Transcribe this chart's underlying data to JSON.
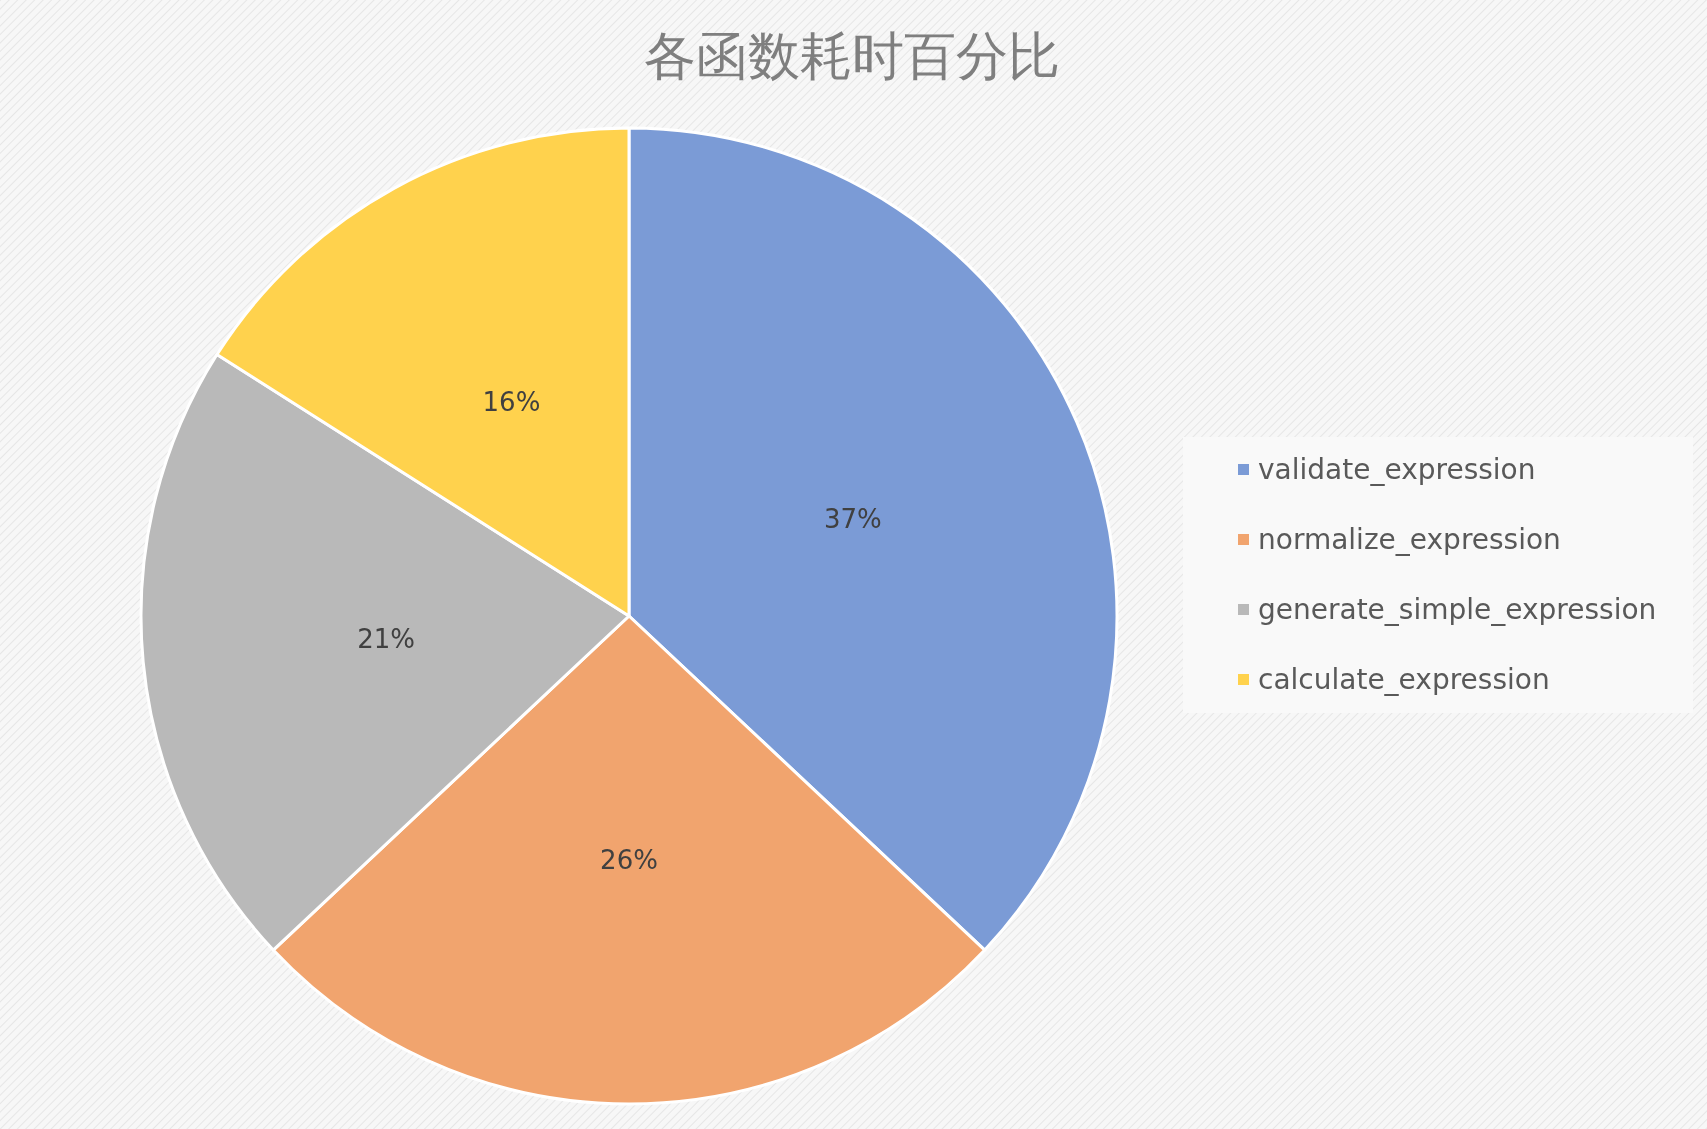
{
  "chart_data": {
    "type": "pie",
    "title": "各函数耗时百分比",
    "categories": [
      "validate_expression",
      "normalize_expression",
      "generate_simple_expression",
      "calculate_expression"
    ],
    "values": [
      37,
      26,
      21,
      16
    ],
    "colors": [
      "#7b9bd6",
      "#f1a46e",
      "#b9b9b9",
      "#ffd24d"
    ],
    "value_labels": [
      "37%",
      "26%",
      "21%",
      "16%"
    ],
    "legend": "right"
  }
}
